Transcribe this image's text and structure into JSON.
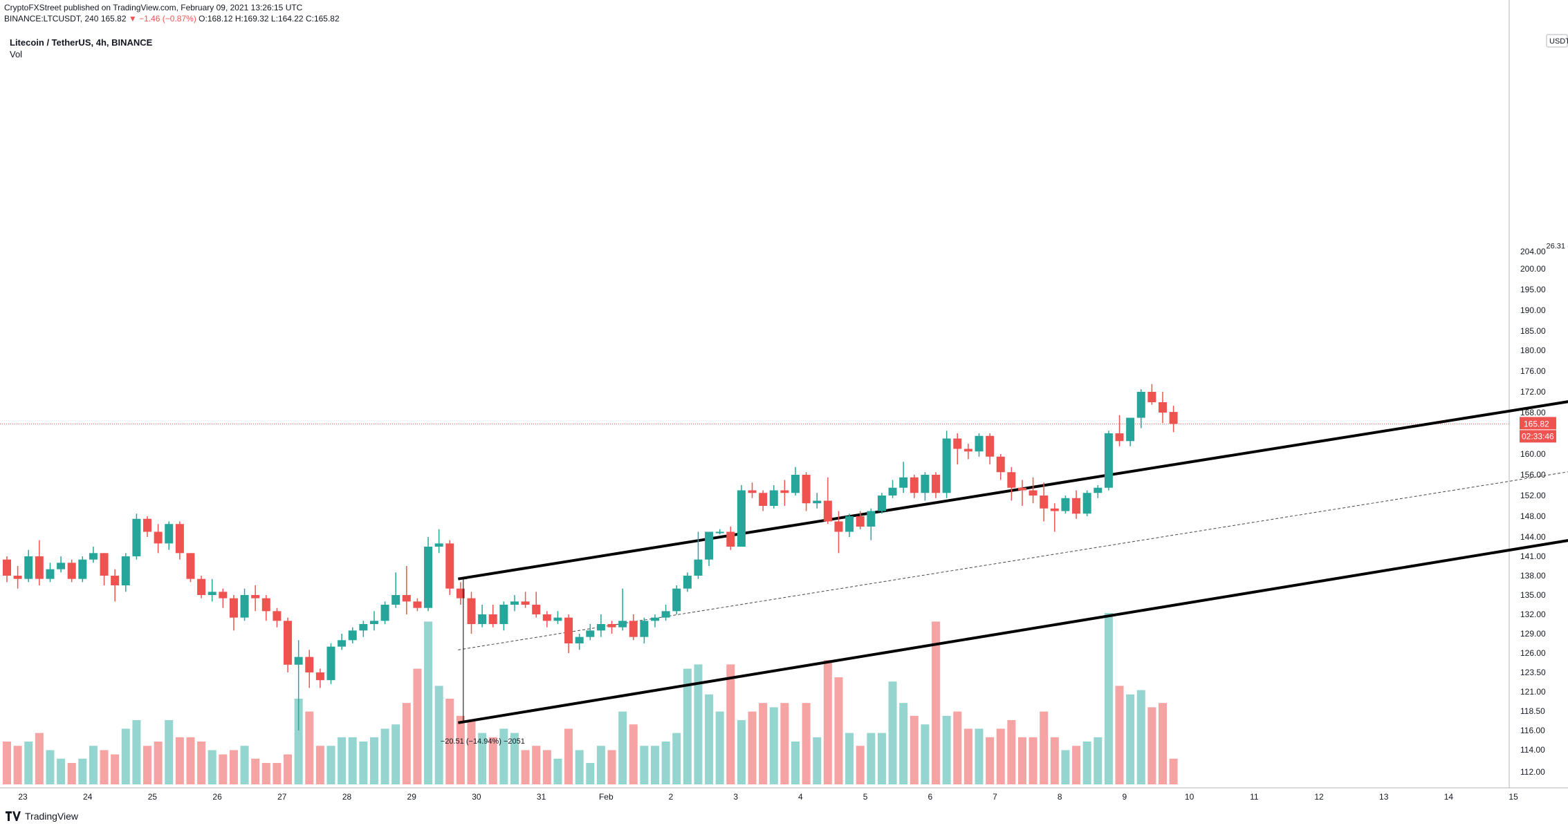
{
  "header": {
    "published_line": "CryptoFXStreet published on TradingView.com, February 09, 2021 13:26:15 UTC",
    "ticker_line_prefix": "BINANCE:LTCUSDT, 240",
    "last_price": "165.82",
    "change": "▼ −1.46 (−0.87%)",
    "ohlc": "O:168.12 H:169.32 L:164.22 C:165.82"
  },
  "chart_title": "Litecoin / TetherUS, 4h, BINANCE",
  "volume_label": "Vol",
  "footer": {
    "brand": "TradingView"
  },
  "price_axis": {
    "currency": "USDT",
    "current_price_label": "165.82",
    "countdown_label": "02:33:46"
  },
  "annotations": {
    "measure_up": "26.31 (15.05%) 2631",
    "measure_down": "−20.51 (−14.94%) −2051"
  },
  "colors": {
    "up": "#26a69a",
    "down": "#ef5350",
    "up_volume": "#94d6cf",
    "down_volume": "#f5a3a3",
    "channel": "#000000",
    "price_line": "#ef5350"
  },
  "chart_data": {
    "type": "candlestick",
    "title": "Litecoin / TetherUS, 4h, BINANCE",
    "y_axis_ticks": [
      112.0,
      114.0,
      116.0,
      118.5,
      121.0,
      123.5,
      126.0,
      129.0,
      132.0,
      135.0,
      138.0,
      141.0,
      144.0,
      148.0,
      152.0,
      156.0,
      160.0,
      164.0,
      168.0,
      172.0,
      176.0,
      180.0,
      185.0,
      190.0,
      195.0,
      200.0,
      204.0
    ],
    "y_axis_labels": [
      "112.00",
      "114.00",
      "116.00",
      "118.50",
      "121.00",
      "123.50",
      "126.00",
      "129.00",
      "132.00",
      "135.00",
      "138.00",
      "141.00",
      "144.00",
      "148.00",
      "152.00",
      "156.00",
      "160.00",
      "164.00",
      "168.00",
      "172.00",
      "176.00",
      "180.00",
      "185.00",
      "190.00",
      "195.00",
      "200.00",
      "204.00"
    ],
    "x_axis_labels": [
      "23",
      "24",
      "25",
      "26",
      "27",
      "28",
      "29",
      "30",
      "31",
      "Feb",
      "2",
      "3",
      "4",
      "5",
      "6",
      "7",
      "8",
      "9",
      "10",
      "11",
      "12",
      "13",
      "14",
      "15"
    ],
    "current_price": 165.82,
    "channel": {
      "upper": {
        "from": [
          7.72,
          137.5
        ],
        "to": [
          29.8,
          180.0
        ]
      },
      "lower": {
        "from": [
          7.72,
          117.0
        ],
        "to": [
          29.8,
          153.5
        ]
      },
      "mid_dashed": {
        "from": [
          7.72,
          126.5
        ],
        "to": [
          29.8,
          166.5
        ]
      }
    },
    "measure_up": {
      "x": 25.1,
      "from": 175.0,
      "to": 201.5,
      "text": "26.31 (15.05%) 2631"
    },
    "measure_down": {
      "x": 7.8,
      "from": 137.5,
      "to": 117.0,
      "text": "−20.51 (−14.94%) −2051"
    },
    "candles": [
      {
        "o": 140.5,
        "h": 141.0,
        "l": 137.0,
        "c": 138.0,
        "v": 10
      },
      {
        "o": 138.0,
        "h": 139.5,
        "l": 136.0,
        "c": 137.5,
        "v": 9
      },
      {
        "o": 137.5,
        "h": 142.0,
        "l": 137.0,
        "c": 141.0,
        "v": 10
      },
      {
        "o": 141.0,
        "h": 143.5,
        "l": 136.5,
        "c": 137.5,
        "v": 12
      },
      {
        "o": 137.5,
        "h": 140.0,
        "l": 137.0,
        "c": 139.0,
        "v": 8
      },
      {
        "o": 139.0,
        "h": 141.0,
        "l": 138.5,
        "c": 140.0,
        "v": 6
      },
      {
        "o": 140.0,
        "h": 140.5,
        "l": 137.0,
        "c": 137.5,
        "v": 5
      },
      {
        "o": 137.5,
        "h": 141.0,
        "l": 137.0,
        "c": 140.5,
        "v": 6
      },
      {
        "o": 140.5,
        "h": 142.5,
        "l": 140.0,
        "c": 141.5,
        "v": 9
      },
      {
        "o": 141.5,
        "h": 141.5,
        "l": 136.5,
        "c": 138.0,
        "v": 8
      },
      {
        "o": 138.0,
        "h": 139.0,
        "l": 134.0,
        "c": 136.5,
        "v": 7
      },
      {
        "o": 136.5,
        "h": 141.5,
        "l": 135.5,
        "c": 141.0,
        "v": 13
      },
      {
        "o": 141.0,
        "h": 148.5,
        "l": 140.5,
        "c": 147.5,
        "v": 15
      },
      {
        "o": 147.5,
        "h": 148.0,
        "l": 144.0,
        "c": 145.0,
        "v": 9
      },
      {
        "o": 145.0,
        "h": 146.5,
        "l": 141.5,
        "c": 143.0,
        "v": 10
      },
      {
        "o": 143.0,
        "h": 147.0,
        "l": 142.0,
        "c": 146.5,
        "v": 15
      },
      {
        "o": 146.5,
        "h": 147.0,
        "l": 140.5,
        "c": 141.5,
        "v": 11
      },
      {
        "o": 141.5,
        "h": 141.5,
        "l": 137.0,
        "c": 137.5,
        "v": 11
      },
      {
        "o": 137.5,
        "h": 138.0,
        "l": 134.5,
        "c": 135.0,
        "v": 10
      },
      {
        "o": 135.0,
        "h": 137.5,
        "l": 134.0,
        "c": 135.5,
        "v": 8
      },
      {
        "o": 135.5,
        "h": 136.0,
        "l": 133.0,
        "c": 134.5,
        "v": 7
      },
      {
        "o": 134.5,
        "h": 135.0,
        "l": 129.5,
        "c": 131.5,
        "v": 8
      },
      {
        "o": 131.5,
        "h": 136.0,
        "l": 131.0,
        "c": 135.0,
        "v": 9
      },
      {
        "o": 135.0,
        "h": 136.5,
        "l": 132.5,
        "c": 134.5,
        "v": 6
      },
      {
        "o": 134.5,
        "h": 135.0,
        "l": 131.0,
        "c": 132.5,
        "v": 5
      },
      {
        "o": 132.5,
        "h": 133.0,
        "l": 130.0,
        "c": 131.0,
        "v": 5
      },
      {
        "o": 131.0,
        "h": 131.5,
        "l": 123.5,
        "c": 124.5,
        "v": 7
      },
      {
        "o": 124.5,
        "h": 128.0,
        "l": 116.0,
        "c": 125.5,
        "v": 20
      },
      {
        "o": 125.5,
        "h": 126.5,
        "l": 121.5,
        "c": 123.5,
        "v": 17
      },
      {
        "o": 123.5,
        "h": 124.0,
        "l": 121.5,
        "c": 122.5,
        "v": 9
      },
      {
        "o": 122.5,
        "h": 127.5,
        "l": 122.0,
        "c": 127.0,
        "v": 9
      },
      {
        "o": 127.0,
        "h": 129.0,
        "l": 126.5,
        "c": 128.0,
        "v": 11
      },
      {
        "o": 128.0,
        "h": 130.0,
        "l": 127.5,
        "c": 129.5,
        "v": 11
      },
      {
        "o": 129.5,
        "h": 131.0,
        "l": 128.5,
        "c": 130.5,
        "v": 10
      },
      {
        "o": 130.5,
        "h": 132.5,
        "l": 129.5,
        "c": 131.0,
        "v": 11
      },
      {
        "o": 131.0,
        "h": 134.0,
        "l": 130.5,
        "c": 133.5,
        "v": 13
      },
      {
        "o": 133.5,
        "h": 138.5,
        "l": 133.0,
        "c": 135.0,
        "v": 14
      },
      {
        "o": 135.0,
        "h": 139.5,
        "l": 132.0,
        "c": 134.0,
        "v": 19
      },
      {
        "o": 134.0,
        "h": 134.5,
        "l": 132.5,
        "c": 133.0,
        "v": 27
      },
      {
        "o": 133.0,
        "h": 144.0,
        "l": 132.5,
        "c": 142.5,
        "v": 38
      },
      {
        "o": 142.5,
        "h": 145.5,
        "l": 141.5,
        "c": 143.0,
        "v": 23
      },
      {
        "o": 143.0,
        "h": 143.5,
        "l": 135.0,
        "c": 136.0,
        "v": 20
      },
      {
        "o": 136.0,
        "h": 137.0,
        "l": 133.5,
        "c": 134.5,
        "v": 16
      },
      {
        "o": 134.5,
        "h": 135.5,
        "l": 129.0,
        "c": 130.5,
        "v": 15
      },
      {
        "o": 130.5,
        "h": 133.5,
        "l": 130.0,
        "c": 132.0,
        "v": 12
      },
      {
        "o": 132.0,
        "h": 133.5,
        "l": 130.0,
        "c": 130.5,
        "v": 11
      },
      {
        "o": 130.5,
        "h": 134.0,
        "l": 129.5,
        "c": 133.5,
        "v": 13
      },
      {
        "o": 133.5,
        "h": 135.0,
        "l": 132.5,
        "c": 134.0,
        "v": 12
      },
      {
        "o": 134.0,
        "h": 135.5,
        "l": 133.0,
        "c": 133.5,
        "v": 8
      },
      {
        "o": 133.5,
        "h": 135.5,
        "l": 131.5,
        "c": 132.0,
        "v": 9
      },
      {
        "o": 132.0,
        "h": 132.5,
        "l": 130.0,
        "c": 131.0,
        "v": 8
      },
      {
        "o": 131.0,
        "h": 132.5,
        "l": 130.5,
        "c": 131.5,
        "v": 6
      },
      {
        "o": 131.5,
        "h": 132.0,
        "l": 126.0,
        "c": 127.5,
        "v": 13
      },
      {
        "o": 127.5,
        "h": 129.0,
        "l": 126.5,
        "c": 128.5,
        "v": 8
      },
      {
        "o": 128.5,
        "h": 130.5,
        "l": 128.0,
        "c": 129.5,
        "v": 5
      },
      {
        "o": 129.5,
        "h": 132.0,
        "l": 128.5,
        "c": 130.5,
        "v": 9
      },
      {
        "o": 130.5,
        "h": 131.0,
        "l": 129.0,
        "c": 130.0,
        "v": 8
      },
      {
        "o": 130.0,
        "h": 136.0,
        "l": 129.5,
        "c": 131.0,
        "v": 17
      },
      {
        "o": 131.0,
        "h": 132.0,
        "l": 128.0,
        "c": 128.5,
        "v": 14
      },
      {
        "o": 128.5,
        "h": 131.5,
        "l": 127.5,
        "c": 131.0,
        "v": 9
      },
      {
        "o": 131.0,
        "h": 132.0,
        "l": 130.0,
        "c": 131.5,
        "v": 9
      },
      {
        "o": 131.5,
        "h": 133.5,
        "l": 131.0,
        "c": 132.5,
        "v": 10
      },
      {
        "o": 132.5,
        "h": 136.5,
        "l": 132.0,
        "c": 136.0,
        "v": 12
      },
      {
        "o": 136.0,
        "h": 138.5,
        "l": 135.5,
        "c": 138.0,
        "v": 27
      },
      {
        "o": 138.0,
        "h": 145.0,
        "l": 137.5,
        "c": 140.5,
        "v": 28
      },
      {
        "o": 140.5,
        "h": 145.0,
        "l": 139.5,
        "c": 145.0,
        "v": 21
      },
      {
        "o": 145.0,
        "h": 145.5,
        "l": 144.5,
        "c": 145.0,
        "v": 17
      },
      {
        "o": 145.0,
        "h": 146.0,
        "l": 142.0,
        "c": 142.5,
        "v": 28
      },
      {
        "o": 142.5,
        "h": 154.0,
        "l": 142.5,
        "c": 153.0,
        "v": 15
      },
      {
        "o": 153.0,
        "h": 154.5,
        "l": 151.5,
        "c": 152.5,
        "v": 17
      },
      {
        "o": 152.5,
        "h": 153.0,
        "l": 149.0,
        "c": 150.0,
        "v": 19
      },
      {
        "o": 150.0,
        "h": 154.0,
        "l": 149.5,
        "c": 153.0,
        "v": 18
      },
      {
        "o": 153.0,
        "h": 155.0,
        "l": 150.0,
        "c": 152.5,
        "v": 19
      },
      {
        "o": 152.5,
        "h": 157.5,
        "l": 152.0,
        "c": 156.0,
        "v": 10
      },
      {
        "o": 156.0,
        "h": 156.5,
        "l": 149.0,
        "c": 150.5,
        "v": 19
      },
      {
        "o": 150.5,
        "h": 152.5,
        "l": 149.5,
        "c": 151.0,
        "v": 11
      },
      {
        "o": 151.0,
        "h": 155.5,
        "l": 146.5,
        "c": 147.0,
        "v": 29
      },
      {
        "o": 147.0,
        "h": 149.0,
        "l": 141.5,
        "c": 145.0,
        "v": 25
      },
      {
        "o": 145.0,
        "h": 148.5,
        "l": 144.0,
        "c": 148.0,
        "v": 12
      },
      {
        "o": 148.0,
        "h": 149.0,
        "l": 145.5,
        "c": 146.0,
        "v": 9
      },
      {
        "o": 146.0,
        "h": 149.5,
        "l": 143.5,
        "c": 149.0,
        "v": 12
      },
      {
        "o": 149.0,
        "h": 152.5,
        "l": 148.5,
        "c": 152.0,
        "v": 12
      },
      {
        "o": 152.0,
        "h": 155.0,
        "l": 151.5,
        "c": 153.5,
        "v": 24
      },
      {
        "o": 153.5,
        "h": 158.5,
        "l": 152.5,
        "c": 155.5,
        "v": 19
      },
      {
        "o": 155.5,
        "h": 156.0,
        "l": 151.5,
        "c": 152.5,
        "v": 16
      },
      {
        "o": 152.5,
        "h": 156.5,
        "l": 151.0,
        "c": 156.0,
        "v": 14
      },
      {
        "o": 156.0,
        "h": 156.5,
        "l": 151.5,
        "c": 152.5,
        "v": 38
      },
      {
        "o": 152.5,
        "h": 164.5,
        "l": 151.5,
        "c": 163.0,
        "v": 16
      },
      {
        "o": 163.0,
        "h": 164.0,
        "l": 158.0,
        "c": 161.0,
        "v": 17
      },
      {
        "o": 161.0,
        "h": 162.0,
        "l": 159.0,
        "c": 160.5,
        "v": 13
      },
      {
        "o": 160.5,
        "h": 164.0,
        "l": 159.5,
        "c": 163.5,
        "v": 13
      },
      {
        "o": 163.5,
        "h": 164.0,
        "l": 158.0,
        "c": 159.5,
        "v": 11
      },
      {
        "o": 159.5,
        "h": 160.0,
        "l": 155.0,
        "c": 156.5,
        "v": 13
      },
      {
        "o": 156.5,
        "h": 157.5,
        "l": 151.0,
        "c": 153.5,
        "v": 15
      },
      {
        "o": 153.5,
        "h": 155.0,
        "l": 150.0,
        "c": 153.0,
        "v": 11
      },
      {
        "o": 153.0,
        "h": 155.5,
        "l": 150.5,
        "c": 152.0,
        "v": 11
      },
      {
        "o": 152.0,
        "h": 154.5,
        "l": 147.0,
        "c": 149.5,
        "v": 17
      },
      {
        "o": 149.5,
        "h": 150.5,
        "l": 145.0,
        "c": 149.0,
        "v": 11
      },
      {
        "o": 149.0,
        "h": 152.0,
        "l": 148.5,
        "c": 151.5,
        "v": 8
      },
      {
        "o": 151.5,
        "h": 153.0,
        "l": 147.5,
        "c": 148.5,
        "v": 9
      },
      {
        "o": 148.5,
        "h": 153.0,
        "l": 148.0,
        "c": 152.5,
        "v": 10
      },
      {
        "o": 152.5,
        "h": 154.0,
        "l": 151.5,
        "c": 153.5,
        "v": 11
      },
      {
        "o": 153.5,
        "h": 164.5,
        "l": 153.0,
        "c": 164.0,
        "v": 40
      },
      {
        "o": 164.0,
        "h": 167.5,
        "l": 161.5,
        "c": 162.5,
        "v": 23
      },
      {
        "o": 162.5,
        "h": 167.0,
        "l": 161.5,
        "c": 167.0,
        "v": 21
      },
      {
        "o": 167.0,
        "h": 172.5,
        "l": 165.0,
        "c": 172.0,
        "v": 22
      },
      {
        "o": 172.0,
        "h": 173.5,
        "l": 169.5,
        "c": 170.0,
        "v": 18
      },
      {
        "o": 170.0,
        "h": 172.0,
        "l": 166.0,
        "c": 168.0,
        "v": 19
      },
      {
        "o": 168.12,
        "h": 169.32,
        "l": 164.22,
        "c": 165.82,
        "v": 6
      }
    ]
  }
}
